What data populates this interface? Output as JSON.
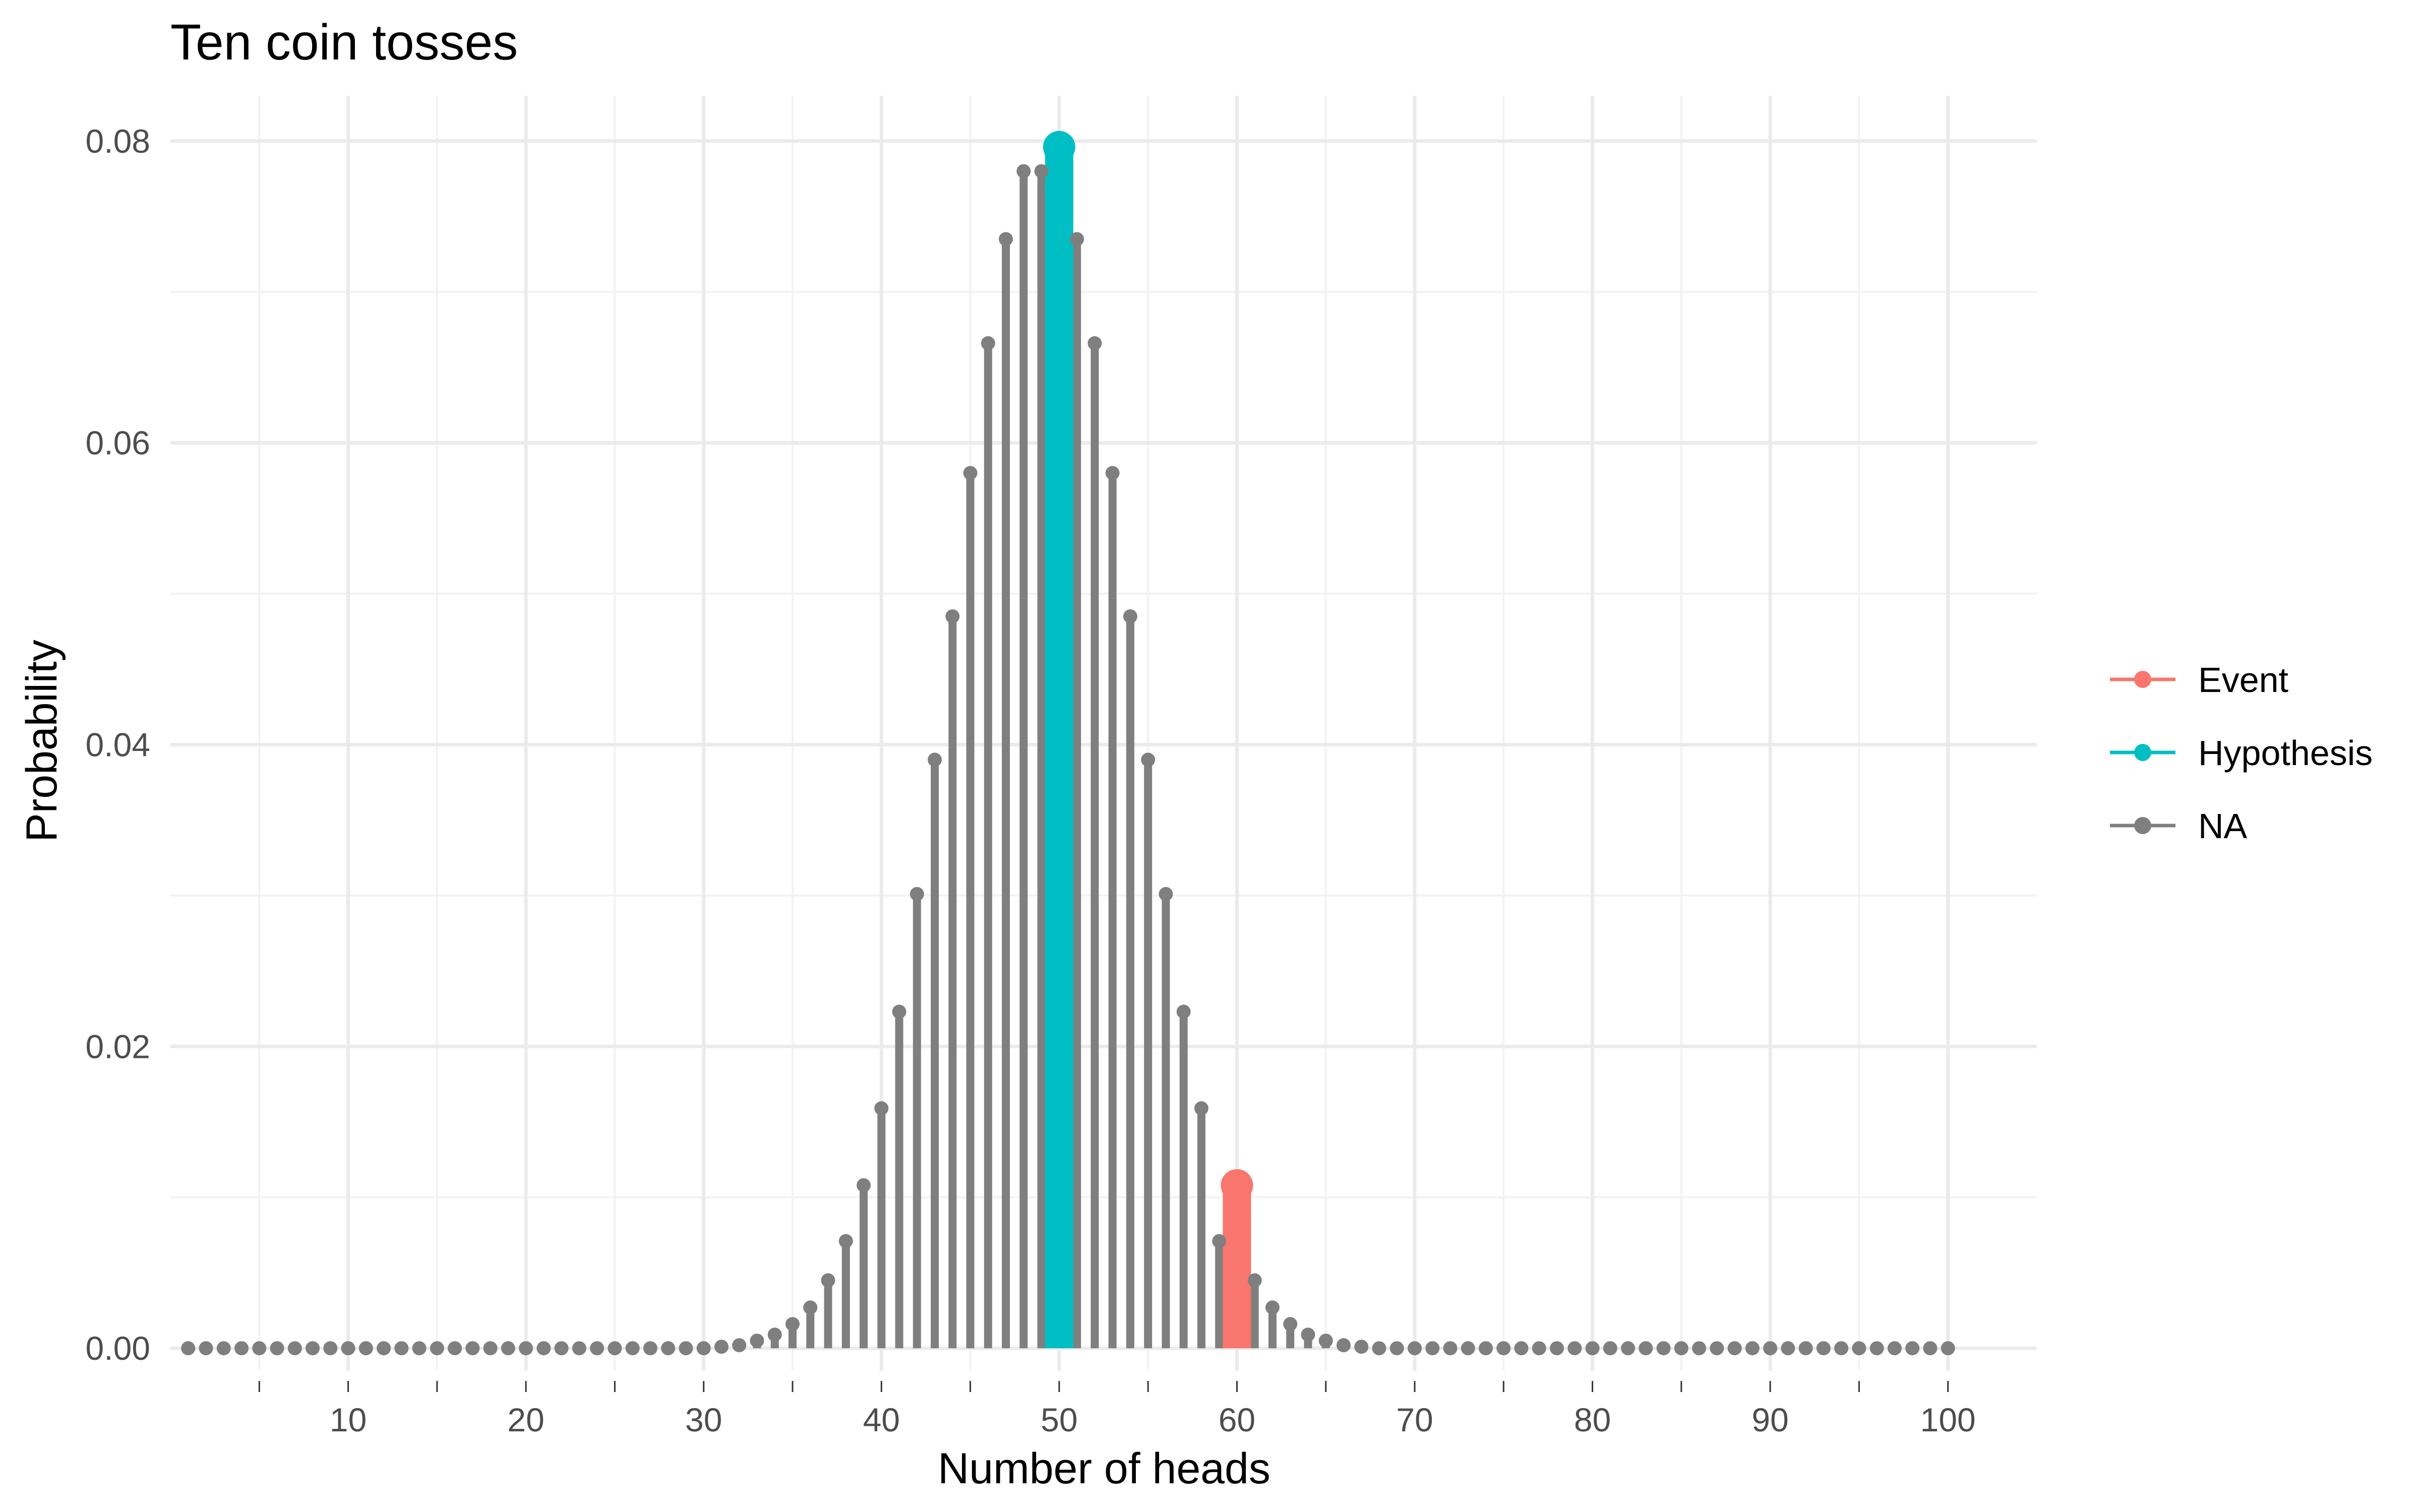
{
  "chart_data": {
    "type": "lollipop",
    "title": "Ten coin tosses",
    "xlabel": "Number of heads",
    "ylabel": "Probability",
    "xlim": [
      0,
      105
    ],
    "ylim": [
      -0.0015,
      0.083
    ],
    "x_ticks": [
      10,
      20,
      30,
      40,
      50,
      60,
      70,
      80,
      90,
      100
    ],
    "x_tick_labels": [
      "10",
      "20",
      "30",
      "40",
      "50",
      "60",
      "70",
      "80",
      "90",
      "100"
    ],
    "y_ticks": [
      0,
      0.02,
      0.04,
      0.06,
      0.08
    ],
    "y_tick_labels": [
      "0.00",
      "0.02",
      "0.04",
      "0.06",
      "0.08"
    ],
    "grid": true,
    "legend_position": "right",
    "series": [
      {
        "name": "Event",
        "color": "#F8766D",
        "x": [
          60
        ],
        "values": [
          0.0108
        ]
      },
      {
        "name": "Hypothesis",
        "color": "#00BFC4",
        "x": [
          50
        ],
        "values": [
          0.0796
        ]
      },
      {
        "name": "NA",
        "color": "#7F7F7F",
        "x": [
          1,
          2,
          3,
          4,
          5,
          6,
          7,
          8,
          9,
          10,
          11,
          12,
          13,
          14,
          15,
          16,
          17,
          18,
          19,
          20,
          21,
          22,
          23,
          24,
          25,
          26,
          27,
          28,
          29,
          30,
          31,
          32,
          33,
          34,
          35,
          36,
          37,
          38,
          39,
          40,
          41,
          42,
          43,
          44,
          45,
          46,
          47,
          48,
          49,
          51,
          52,
          53,
          54,
          55,
          56,
          57,
          58,
          59,
          61,
          62,
          63,
          64,
          65,
          66,
          67,
          68,
          69,
          70,
          71,
          72,
          73,
          74,
          75,
          76,
          77,
          78,
          79,
          80,
          81,
          82,
          83,
          84,
          85,
          86,
          87,
          88,
          89,
          90,
          91,
          92,
          93,
          94,
          95,
          96,
          97,
          98,
          99,
          100
        ],
        "values": [
          0,
          0,
          0,
          0,
          0,
          0,
          0,
          0,
          0,
          0,
          0,
          0,
          0,
          0,
          0,
          0,
          0,
          0,
          0,
          0,
          0,
          0,
          0,
          0,
          0,
          0,
          0,
          0,
          0,
          0,
          0.0001,
          0.0002,
          0.0005,
          0.0009,
          0.0016,
          0.0027,
          0.0045,
          0.0071,
          0.0108,
          0.0159,
          0.0223,
          0.0301,
          0.039,
          0.0485,
          0.058,
          0.0666,
          0.0735,
          0.078,
          0.078,
          0.0735,
          0.0666,
          0.058,
          0.0485,
          0.039,
          0.0301,
          0.0223,
          0.0159,
          0.0071,
          0.0045,
          0.0027,
          0.0016,
          0.0009,
          0.0005,
          0.0002,
          0.0001,
          0,
          0,
          0,
          0,
          0,
          0,
          0,
          0,
          0,
          0,
          0,
          0,
          0,
          0,
          0,
          0,
          0,
          0,
          0,
          0,
          0,
          0,
          0,
          0,
          0,
          0,
          0,
          0,
          0,
          0,
          0,
          0,
          0
        ]
      }
    ]
  }
}
